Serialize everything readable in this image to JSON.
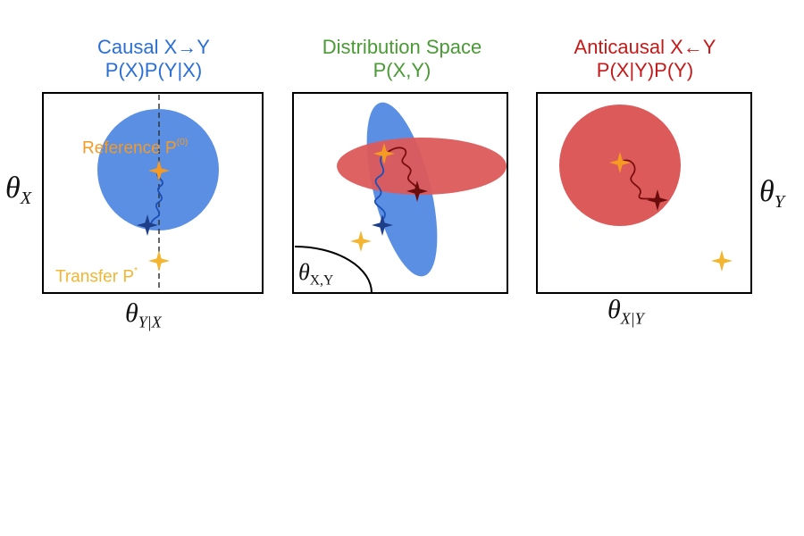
{
  "panels": [
    {
      "id": "causal",
      "title_line1": "Causal X→Y",
      "title_line2": "P(X)P(Y|X)",
      "title_color": "#2b6fd6",
      "y_axis_symbol": "θ",
      "y_axis_sub": "X",
      "x_axis_symbol": "θ",
      "x_axis_sub": "Y|X",
      "reference_label": "Reference P",
      "reference_sup": "(0)",
      "transfer_label": "Transfer P",
      "transfer_sup": "*"
    },
    {
      "id": "distribution",
      "title_line1": "Distribution Space",
      "title_line2": "P(X,Y)",
      "title_color": "#4a9a35",
      "corner_symbol": "θ",
      "corner_sub": "X,Y"
    },
    {
      "id": "anticausal",
      "title_line1": "Anticausal X←Y",
      "title_line2": "P(X|Y)P(Y)",
      "title_color": "#c41a1a",
      "y_axis_symbol": "θ",
      "y_axis_sub": "Y",
      "x_axis_symbol": "θ",
      "x_axis_sub": "X|Y"
    }
  ],
  "colors": {
    "blue_fill": "#5b8fe3",
    "red_fill": "#dd5a5a",
    "orange_star": "#f59a22",
    "yellow_star": "#f2b632",
    "blue_path": "#1c4fb5",
    "red_path": "#7a0d0d",
    "blue_star_dark": "#1f3e8a",
    "red_star_dark": "#6b0c0c"
  }
}
